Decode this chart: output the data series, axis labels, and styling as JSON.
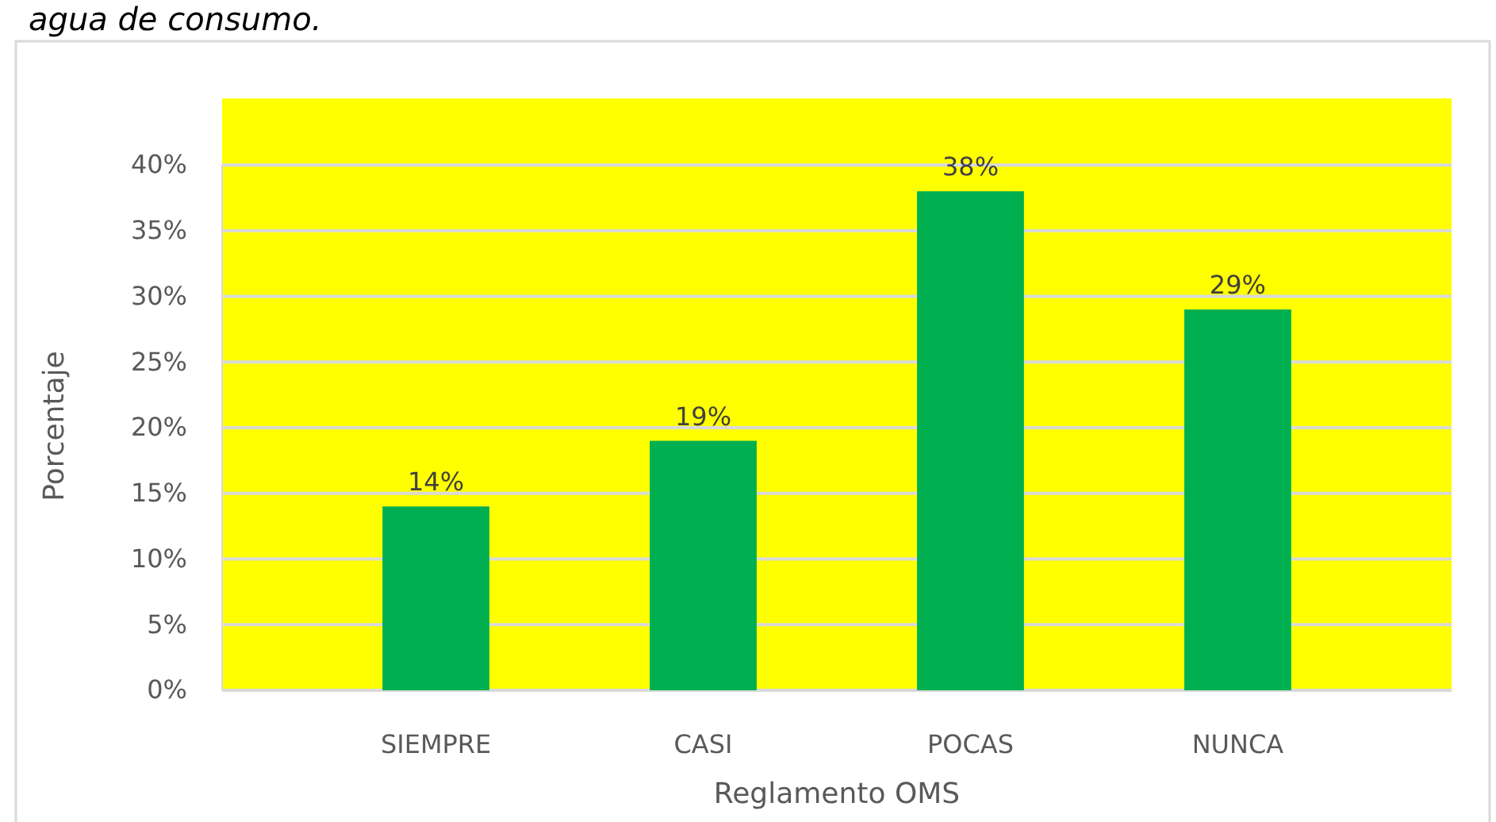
{
  "chart_data": {
    "type": "bar",
    "title": "agua de consumo.",
    "xlabel": "Reglamento OMS",
    "ylabel": "Porcentaje",
    "categories": [
      "SIEMPRE",
      "CASI",
      "POCAS",
      "NUNCA"
    ],
    "values": [
      14,
      19,
      38,
      29
    ],
    "value_labels": [
      "14%",
      "19%",
      "38%",
      "29%"
    ],
    "color": "#00b050",
    "ylim": [
      0,
      40
    ],
    "yticks": [
      {
        "value": 0,
        "label": "0%"
      },
      {
        "value": 5,
        "label": "5%"
      },
      {
        "value": 10,
        "label": "10%"
      },
      {
        "value": 15,
        "label": "15%"
      },
      {
        "value": 20,
        "label": "20%"
      },
      {
        "value": 25,
        "label": "25%"
      },
      {
        "value": 30,
        "label": "30%"
      },
      {
        "value": 35,
        "label": "35%"
      },
      {
        "value": 40,
        "label": "40%"
      }
    ],
    "grid": "y"
  }
}
